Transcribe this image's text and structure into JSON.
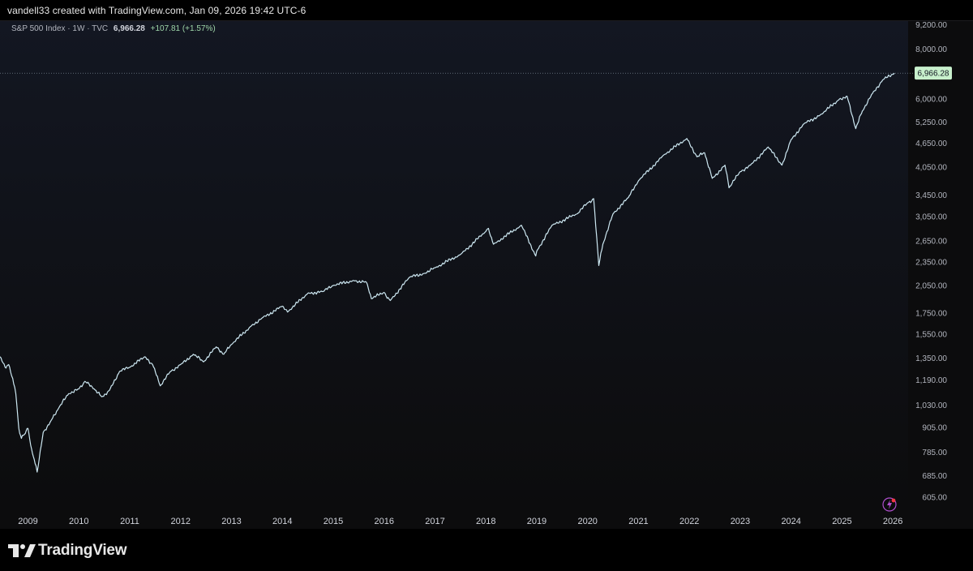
{
  "header": {
    "credit": "vandell33 created with TradingView.com, Jan 09, 2026 19:42 UTC-6"
  },
  "legend": {
    "symbol": "S&P 500 Index · 1W · TVC",
    "price": "6,966.28",
    "change": "+107.81 (+1.57%)"
  },
  "footer": {
    "brand": "TradingView"
  },
  "colors": {
    "line": "#cde8f2",
    "last_price_badge": "#c8f0cc",
    "background_top": "#131722",
    "background_bottom": "#0c0c0d"
  },
  "icons": {
    "logo": "tradingview-logo-icon",
    "bolt": "lightning-icon"
  },
  "chart_data": {
    "type": "line",
    "title": "S&P 500 Index · 1W · TVC",
    "scale": "log",
    "grid": false,
    "ylim": [
      570,
      9400
    ],
    "xlim": [
      2008.45,
      2026.3
    ],
    "last_price": 6966.28,
    "last_price_label": "6,966.28",
    "y_ticks": [
      {
        "v": 9200,
        "label": "9,200.00"
      },
      {
        "v": 8000,
        "label": "8,000.00"
      },
      {
        "v": 6000,
        "label": "6,000.00"
      },
      {
        "v": 5250,
        "label": "5,250.00"
      },
      {
        "v": 4650,
        "label": "4,650.00"
      },
      {
        "v": 4050,
        "label": "4,050.00"
      },
      {
        "v": 3450,
        "label": "3,450.00"
      },
      {
        "v": 3050,
        "label": "3,050.00"
      },
      {
        "v": 2650,
        "label": "2,650.00"
      },
      {
        "v": 2350,
        "label": "2,350.00"
      },
      {
        "v": 2050,
        "label": "2,050.00"
      },
      {
        "v": 1750,
        "label": "1,750.00"
      },
      {
        "v": 1550,
        "label": "1,550.00"
      },
      {
        "v": 1350,
        "label": "1,350.00"
      },
      {
        "v": 1190,
        "label": "1,190.00"
      },
      {
        "v": 1030,
        "label": "1,030.00"
      },
      {
        "v": 905,
        "label": "905.00"
      },
      {
        "v": 785,
        "label": "785.00"
      },
      {
        "v": 685,
        "label": "685.00"
      },
      {
        "v": 605,
        "label": "605.00"
      }
    ],
    "x_ticks": [
      {
        "v": 2009,
        "label": "2009"
      },
      {
        "v": 2010,
        "label": "2010"
      },
      {
        "v": 2011,
        "label": "2011"
      },
      {
        "v": 2012,
        "label": "2012"
      },
      {
        "v": 2013,
        "label": "2013"
      },
      {
        "v": 2014,
        "label": "2014"
      },
      {
        "v": 2015,
        "label": "2015"
      },
      {
        "v": 2016,
        "label": "2016"
      },
      {
        "v": 2017,
        "label": "2017"
      },
      {
        "v": 2018,
        "label": "2018"
      },
      {
        "v": 2019,
        "label": "2019"
      },
      {
        "v": 2020,
        "label": "2020"
      },
      {
        "v": 2021,
        "label": "2021"
      },
      {
        "v": 2022,
        "label": "2022"
      },
      {
        "v": 2023,
        "label": "2023"
      },
      {
        "v": 2024,
        "label": "2024"
      },
      {
        "v": 2025,
        "label": "2025"
      },
      {
        "v": 2026,
        "label": "2026"
      }
    ],
    "series": [
      {
        "x": [
          2008.45,
          2008.55,
          2008.62,
          2008.7,
          2008.76,
          2008.82,
          2008.87,
          2008.93,
          2009.0,
          2009.07,
          2009.14,
          2009.18,
          2009.3,
          2009.45,
          2009.6,
          2009.8,
          2010.0,
          2010.12,
          2010.3,
          2010.45,
          2010.6,
          2010.8,
          2011.0,
          2011.3,
          2011.45,
          2011.6,
          2011.8,
          2012.0,
          2012.25,
          2012.45,
          2012.7,
          2012.85,
          2013.0,
          2013.4,
          2013.6,
          2014.0,
          2014.1,
          2014.5,
          2014.8,
          2015.0,
          2015.4,
          2015.65,
          2015.75,
          2016.0,
          2016.12,
          2016.5,
          2016.8,
          2017.0,
          2017.5,
          2018.0,
          2018.05,
          2018.15,
          2018.7,
          2018.98,
          2019.0,
          2019.3,
          2019.8,
          2020.0,
          2020.12,
          2020.22,
          2020.3,
          2020.5,
          2020.8,
          2021.0,
          2021.5,
          2021.95,
          2022.15,
          2022.3,
          2022.45,
          2022.7,
          2022.78,
          2023.0,
          2023.2,
          2023.55,
          2023.82,
          2024.0,
          2024.25,
          2024.6,
          2024.95,
          2025.1,
          2025.27,
          2025.4,
          2025.6,
          2025.8,
          2026.03
        ],
        "values": [
          1360,
          1280,
          1300,
          1200,
          1100,
          900,
          850,
          870,
          900,
          800,
          735,
          700,
          880,
          940,
          1010,
          1100,
          1130,
          1180,
          1130,
          1080,
          1120,
          1250,
          1280,
          1360,
          1300,
          1150,
          1250,
          1300,
          1380,
          1320,
          1440,
          1380,
          1460,
          1630,
          1700,
          1820,
          1760,
          1960,
          1980,
          2050,
          2110,
          2090,
          1900,
          1970,
          1880,
          2150,
          2200,
          2270,
          2450,
          2800,
          2850,
          2600,
          2900,
          2430,
          2500,
          2900,
          3100,
          3300,
          3380,
          2300,
          2600,
          3100,
          3400,
          3750,
          4350,
          4780,
          4300,
          4400,
          3800,
          4100,
          3600,
          3950,
          4100,
          4550,
          4100,
          4750,
          5200,
          5500,
          6000,
          6100,
          5060,
          5600,
          6200,
          6700,
          6966.28
        ]
      }
    ]
  }
}
